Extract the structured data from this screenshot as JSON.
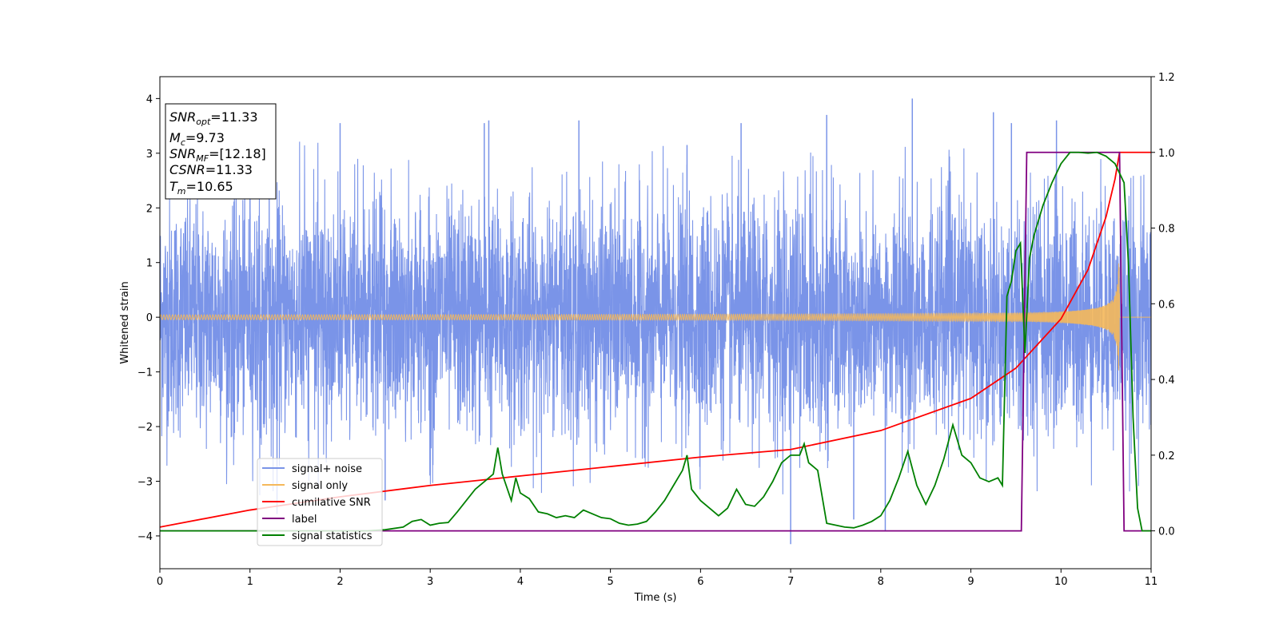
{
  "chart_data": {
    "type": "line",
    "xlabel": "Time (s)",
    "ylabel": "Whitened strain",
    "xlim": [
      0,
      11
    ],
    "ylim": [
      -4.6,
      4.4
    ],
    "y2lim": [
      -0.1,
      1.2
    ],
    "x_ticks": [
      0,
      1,
      2,
      3,
      4,
      5,
      6,
      7,
      8,
      9,
      10,
      11
    ],
    "y_ticks": [
      -4,
      -3,
      -2,
      -1,
      0,
      1,
      2,
      3,
      4
    ],
    "y_tick_labels": [
      "−4",
      "−3",
      "−2",
      "−1",
      "0",
      "1",
      "2",
      "3",
      "4"
    ],
    "y2_ticks": [
      0.0,
      0.2,
      0.4,
      0.6,
      0.8,
      1.0,
      1.2
    ],
    "y2_tick_labels": [
      "0.0",
      "0.2",
      "0.4",
      "0.6",
      "0.8",
      "1.0",
      "1.2"
    ],
    "legend_position": "lower-left",
    "grid": false,
    "stats_box": [
      {
        "base": "SNR",
        "sub": "opt",
        "value": "=11.33"
      },
      {
        "base": "M",
        "sub": "c",
        "value": "=9.73"
      },
      {
        "base": "SNR",
        "sub": "MF",
        "value": "=[12.18]"
      },
      {
        "base": "CSNR",
        "sub": "",
        "value": "=11.33"
      },
      {
        "base": "T",
        "sub": "m",
        "value": "=10.65"
      }
    ],
    "series": [
      {
        "name": "signal+ noise",
        "color": "#7a94e8",
        "axis": "left",
        "kind": "noise",
        "spikes": [
          [
            1.0,
            3.3
          ],
          [
            1.3,
            -3.6
          ],
          [
            2.0,
            3.55
          ],
          [
            2.5,
            -3.35
          ],
          [
            3.6,
            3.55
          ],
          [
            3.65,
            3.6
          ],
          [
            4.65,
            3.6
          ],
          [
            5.85,
            3.15
          ],
          [
            6.45,
            3.55
          ],
          [
            7.0,
            -4.15
          ],
          [
            7.4,
            3.7
          ],
          [
            7.7,
            -3.7
          ],
          [
            8.05,
            -3.9
          ],
          [
            8.35,
            4.0
          ],
          [
            9.25,
            3.75
          ],
          [
            9.45,
            3.55
          ],
          [
            9.95,
            3.6
          ]
        ]
      },
      {
        "name": "signal only",
        "color": "#f5b85a",
        "axis": "left",
        "kind": "chirp",
        "merger_time": 10.65,
        "peak_amplitude": 1.0
      },
      {
        "name": "cumilative SNR",
        "color": "#ff0000",
        "axis": "right",
        "x": [
          0,
          1,
          2,
          3,
          4,
          5,
          6,
          7,
          8,
          9,
          9.5,
          10,
          10.3,
          10.5,
          10.6,
          10.65,
          11
        ],
        "y": [
          0.01,
          0.055,
          0.09,
          0.12,
          0.145,
          0.17,
          0.195,
          0.215,
          0.265,
          0.35,
          0.43,
          0.56,
          0.69,
          0.83,
          0.93,
          1.0,
          1.0
        ]
      },
      {
        "name": "label",
        "color": "#800080",
        "axis": "right",
        "x": [
          0,
          9.56,
          9.62,
          10.65,
          10.7,
          11
        ],
        "y": [
          0,
          0,
          1,
          1,
          0,
          0
        ]
      },
      {
        "name": "signal statistics",
        "color": "#008000",
        "axis": "right",
        "x": [
          0,
          1,
          2,
          2.3,
          2.5,
          2.7,
          2.8,
          2.9,
          3.0,
          3.1,
          3.2,
          3.3,
          3.4,
          3.5,
          3.6,
          3.7,
          3.75,
          3.8,
          3.9,
          3.95,
          4.0,
          4.1,
          4.2,
          4.3,
          4.4,
          4.5,
          4.6,
          4.7,
          4.8,
          4.9,
          5.0,
          5.1,
          5.2,
          5.3,
          5.4,
          5.5,
          5.6,
          5.7,
          5.8,
          5.85,
          5.9,
          6.0,
          6.1,
          6.2,
          6.3,
          6.4,
          6.5,
          6.6,
          6.7,
          6.8,
          6.9,
          7.0,
          7.1,
          7.15,
          7.2,
          7.3,
          7.4,
          7.5,
          7.6,
          7.7,
          7.8,
          7.9,
          8.0,
          8.1,
          8.2,
          8.3,
          8.4,
          8.5,
          8.6,
          8.7,
          8.8,
          8.9,
          9.0,
          9.1,
          9.2,
          9.3,
          9.35,
          9.4,
          9.45,
          9.5,
          9.55,
          9.6,
          9.65,
          9.7,
          9.8,
          9.9,
          10.0,
          10.1,
          10.2,
          10.3,
          10.4,
          10.5,
          10.6,
          10.7,
          10.75,
          10.8,
          10.85,
          10.9,
          11.0
        ],
        "y": [
          0.0,
          0.0,
          0.0,
          0.0,
          0.003,
          0.01,
          0.025,
          0.03,
          0.015,
          0.02,
          0.022,
          0.05,
          0.08,
          0.11,
          0.13,
          0.15,
          0.22,
          0.15,
          0.08,
          0.14,
          0.1,
          0.085,
          0.05,
          0.045,
          0.035,
          0.04,
          0.035,
          0.055,
          0.045,
          0.035,
          0.032,
          0.02,
          0.015,
          0.018,
          0.025,
          0.05,
          0.08,
          0.12,
          0.16,
          0.2,
          0.11,
          0.08,
          0.06,
          0.04,
          0.06,
          0.11,
          0.07,
          0.065,
          0.09,
          0.13,
          0.18,
          0.2,
          0.2,
          0.23,
          0.18,
          0.16,
          0.02,
          0.015,
          0.01,
          0.008,
          0.015,
          0.025,
          0.04,
          0.08,
          0.14,
          0.21,
          0.12,
          0.07,
          0.12,
          0.19,
          0.28,
          0.2,
          0.18,
          0.14,
          0.13,
          0.14,
          0.12,
          0.62,
          0.66,
          0.74,
          0.76,
          0.47,
          0.72,
          0.78,
          0.86,
          0.92,
          0.97,
          1.0,
          1.0,
          0.998,
          1.0,
          0.99,
          0.97,
          0.92,
          0.7,
          0.3,
          0.06,
          0.0,
          0.0
        ]
      }
    ]
  }
}
